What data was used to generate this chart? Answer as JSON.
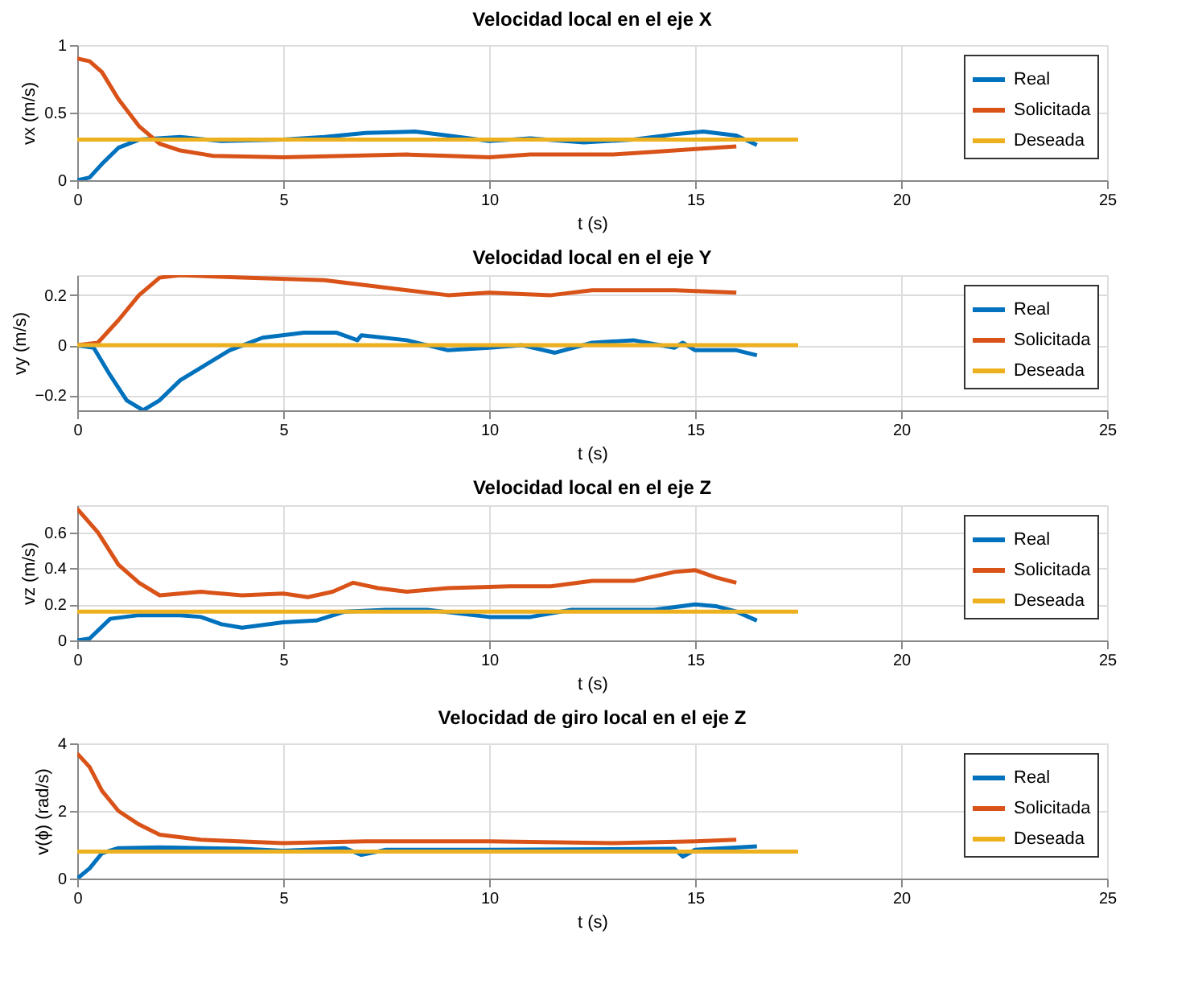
{
  "chart_data": [
    {
      "type": "line",
      "title": "Velocidad local en el eje X",
      "xlabel": "t (s)",
      "ylabel": "vx (m/s)",
      "xlim": [
        0,
        25
      ],
      "xticks": [
        0,
        5,
        10,
        15,
        20,
        25
      ],
      "ylim": [
        0,
        1
      ],
      "yticks": [
        0,
        0.5,
        1
      ],
      "grid": true,
      "legend": "top right",
      "line_style": "solid",
      "series": [
        {
          "name": "Real",
          "color": "#0072bd",
          "x": [
            0,
            0.3,
            0.6,
            1,
            1.5,
            2.5,
            3.5,
            5,
            6,
            7,
            8.2,
            9,
            10,
            11,
            12.3,
            13.5,
            14.5,
            15.2,
            16,
            16.5
          ],
          "values": [
            0,
            0.02,
            0.12,
            0.24,
            0.3,
            0.32,
            0.29,
            0.3,
            0.32,
            0.35,
            0.36,
            0.33,
            0.29,
            0.31,
            0.28,
            0.3,
            0.34,
            0.36,
            0.33,
            0.26
          ]
        },
        {
          "name": "Solicitada",
          "color": "#d95319",
          "x": [
            0,
            0.3,
            0.6,
            1,
            1.5,
            2,
            2.5,
            3.3,
            5,
            6.5,
            8,
            9,
            10,
            11,
            12,
            13,
            14,
            15,
            16
          ],
          "values": [
            0.9,
            0.88,
            0.8,
            0.6,
            0.4,
            0.27,
            0.22,
            0.18,
            0.17,
            0.18,
            0.19,
            0.18,
            0.17,
            0.19,
            0.19,
            0.19,
            0.21,
            0.23,
            0.25
          ]
        },
        {
          "name": "Deseada",
          "color": "#edb120",
          "x": [
            0,
            17.5
          ],
          "values": [
            0.3,
            0.3
          ]
        }
      ]
    },
    {
      "type": "line",
      "title": "Velocidad local en el eje Y",
      "xlabel": "t (s)",
      "ylabel": "vy (m/s)",
      "xlim": [
        0,
        25
      ],
      "xticks": [
        0,
        5,
        10,
        15,
        20,
        25
      ],
      "ylim": [
        -0.26,
        0.28
      ],
      "yticks": [
        -0.2,
        0,
        0.2
      ],
      "grid": true,
      "legend": "top right",
      "line_style": "solid",
      "series": [
        {
          "name": "Real",
          "color": "#0072bd",
          "x": [
            0,
            0.4,
            0.8,
            1.2,
            1.6,
            2,
            2.5,
            3,
            3.7,
            4.5,
            5.5,
            6.3,
            6.8,
            6.9,
            8,
            9,
            10,
            10.8,
            11.6,
            12.5,
            13.5,
            14.5,
            14.7,
            15,
            16,
            16.5
          ],
          "values": [
            0,
            -0.01,
            -0.12,
            -0.22,
            -0.26,
            -0.22,
            -0.14,
            -0.09,
            -0.02,
            0.03,
            0.05,
            0.05,
            0.02,
            0.04,
            0.02,
            -0.02,
            -0.01,
            0,
            -0.03,
            0.01,
            0.02,
            -0.01,
            0.01,
            -0.02,
            -0.02,
            -0.04
          ]
        },
        {
          "name": "Solicitada",
          "color": "#d95319",
          "x": [
            0,
            0.5,
            1,
            1.5,
            2,
            2.5,
            4,
            6,
            7,
            8,
            9,
            10,
            11.5,
            12.5,
            14.5,
            16
          ],
          "values": [
            0,
            0.01,
            0.1,
            0.2,
            0.27,
            0.28,
            0.27,
            0.26,
            0.24,
            0.22,
            0.2,
            0.21,
            0.2,
            0.22,
            0.22,
            0.21
          ]
        },
        {
          "name": "Deseada",
          "color": "#edb120",
          "x": [
            0,
            17.5
          ],
          "values": [
            0,
            0
          ]
        }
      ]
    },
    {
      "type": "line",
      "title": "Velocidad local en el eje Z",
      "xlabel": "t (s)",
      "ylabel": "vz (m/s)",
      "xlim": [
        0,
        25
      ],
      "xticks": [
        0,
        5,
        10,
        15,
        20,
        25
      ],
      "ylim": [
        0,
        0.75
      ],
      "yticks": [
        0,
        0.2,
        0.4,
        0.6
      ],
      "grid": true,
      "legend": "top right",
      "line_style": "solid",
      "series": [
        {
          "name": "Real",
          "color": "#0072bd",
          "x": [
            0,
            0.3,
            0.8,
            1.5,
            2.5,
            3,
            3.5,
            4,
            5,
            5.8,
            6.5,
            7.5,
            8.5,
            10,
            11,
            12,
            13,
            14,
            15,
            15.5,
            16,
            16.5
          ],
          "values": [
            0,
            0.01,
            0.12,
            0.14,
            0.14,
            0.13,
            0.09,
            0.07,
            0.1,
            0.11,
            0.16,
            0.17,
            0.17,
            0.13,
            0.13,
            0.17,
            0.17,
            0.17,
            0.2,
            0.19,
            0.16,
            0.11
          ]
        },
        {
          "name": "Solicitada",
          "color": "#d95319",
          "x": [
            0,
            0.5,
            1,
            1.5,
            2,
            3,
            4,
            5,
            5.6,
            6.2,
            6.7,
            7.3,
            8,
            9,
            10.5,
            11.5,
            12.5,
            13.5,
            14.5,
            15,
            15.5,
            16
          ],
          "values": [
            0.73,
            0.6,
            0.42,
            0.32,
            0.25,
            0.27,
            0.25,
            0.26,
            0.24,
            0.27,
            0.32,
            0.29,
            0.27,
            0.29,
            0.3,
            0.3,
            0.33,
            0.33,
            0.38,
            0.39,
            0.35,
            0.32
          ]
        },
        {
          "name": "Deseada",
          "color": "#edb120",
          "x": [
            0,
            17.5
          ],
          "values": [
            0.16,
            0.16
          ]
        }
      ]
    },
    {
      "type": "line",
      "title": "Velocidad de giro local en el eje Z",
      "xlabel": "t (s)",
      "ylabel": "v(ϕ) (rad/s)",
      "xlim": [
        0,
        25
      ],
      "xticks": [
        0,
        5,
        10,
        15,
        20,
        25
      ],
      "ylim": [
        0,
        4
      ],
      "yticks": [
        0,
        2,
        4
      ],
      "grid": true,
      "legend": "top right",
      "line_style": "solid",
      "series": [
        {
          "name": "Real",
          "color": "#0072bd",
          "x": [
            0,
            0.3,
            0.6,
            1,
            2,
            4,
            5,
            6.5,
            6.9,
            7.5,
            10,
            14.5,
            14.7,
            15,
            16.5
          ],
          "values": [
            0,
            0.3,
            0.75,
            0.9,
            0.92,
            0.88,
            0.82,
            0.9,
            0.7,
            0.85,
            0.85,
            0.88,
            0.65,
            0.85,
            0.95
          ]
        },
        {
          "name": "Solicitada",
          "color": "#d95319",
          "x": [
            0,
            0.3,
            0.6,
            1,
            1.5,
            2,
            3,
            5,
            7,
            10,
            13,
            15,
            16
          ],
          "values": [
            3.7,
            3.3,
            2.6,
            2,
            1.6,
            1.3,
            1.15,
            1.05,
            1.1,
            1.1,
            1.05,
            1.1,
            1.15
          ]
        },
        {
          "name": "Deseada",
          "color": "#edb120",
          "x": [
            0,
            17.5
          ],
          "values": [
            0.8,
            0.8
          ]
        }
      ]
    }
  ]
}
